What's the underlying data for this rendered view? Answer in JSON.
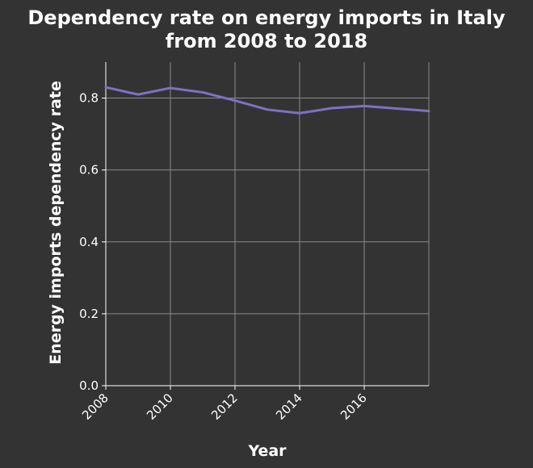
{
  "chart_data": {
    "type": "line",
    "title_lines": [
      "Dependency rate on energy imports in Italy",
      "from 2008 to 2018"
    ],
    "xlabel": "Year",
    "ylabel": "Energy imports dependency rate",
    "x": [
      2008,
      2009,
      2010,
      2011,
      2012,
      2013,
      2014,
      2015,
      2016,
      2017,
      2018
    ],
    "series": [
      {
        "values": [
          0.83,
          0.81,
          0.828,
          0.816,
          0.793,
          0.768,
          0.758,
          0.772,
          0.778,
          0.771,
          0.764
        ]
      }
    ],
    "xlim": [
      2008,
      2018
    ],
    "ylim": [
      0,
      0.9
    ],
    "xticks": [
      "2008",
      "2010",
      "2012",
      "2014",
      "2016"
    ],
    "yticks": [
      "0.0",
      "0.2",
      "0.4",
      "0.6",
      "0.8"
    ],
    "grid": true,
    "line_color": "#7b72c4"
  }
}
